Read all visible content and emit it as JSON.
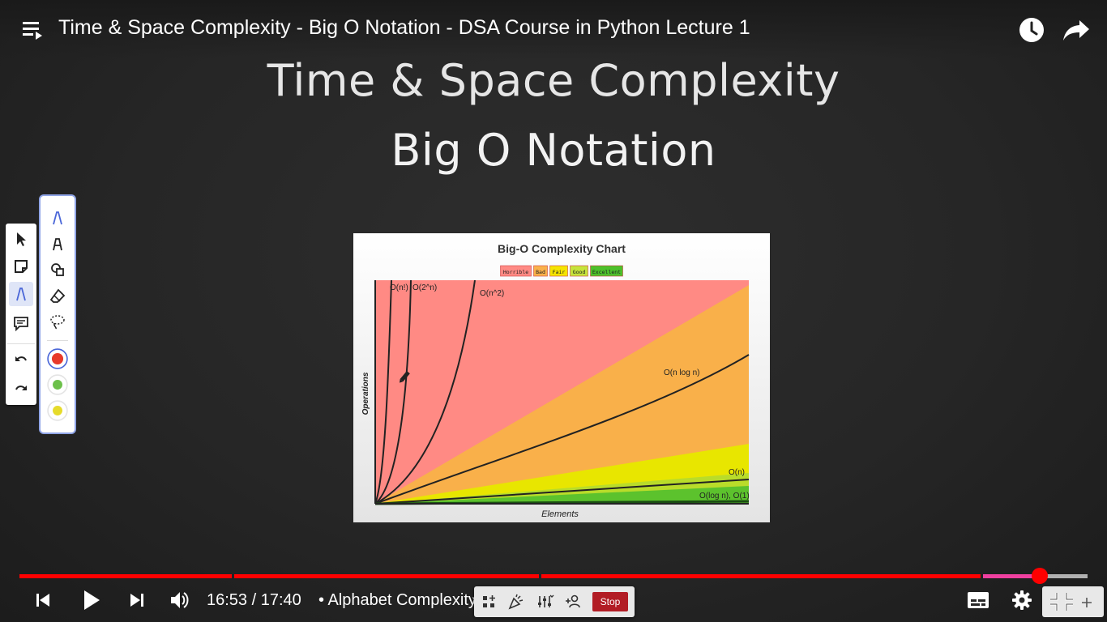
{
  "video": {
    "title": "Time & Space Complexity - Big O Notation - DSA Course in Python Lecture 1"
  },
  "slide": {
    "title": "Time & Space Complexity",
    "subtitle": "Big O Notation"
  },
  "chart_data": {
    "type": "line",
    "title": "Big-O Complexity Chart",
    "xlabel": "Elements",
    "ylabel": "Operations",
    "legend": [
      "Horrible",
      "Bad",
      "Fair",
      "Good",
      "Excellent"
    ],
    "legend_colors": [
      "#ff8a84",
      "#f9b04a",
      "#f5e400",
      "#c5e33b",
      "#4dc02a"
    ],
    "legend_position": "top-center",
    "curve_labels": [
      "O(n!)",
      "O(2^n)",
      "O(n^2)",
      "O(n log n)",
      "O(n)",
      "O(log n), O(1)"
    ],
    "grid": false
  },
  "player": {
    "current_time": "16:53",
    "duration": "17:40",
    "time_separator": " / ",
    "chapter_bullet": "•",
    "chapter": "Alphabet Complexity",
    "chapter_arrow": "›",
    "progress_played": 0.955,
    "stop_label": "Stop",
    "colors": {
      "played": "#ff0000",
      "buffered": "#b0b0b0"
    }
  },
  "annotation_tools": {
    "left": [
      "cursor-icon",
      "sticky-note-icon",
      "pen-icon",
      "comment-icon",
      "undo-icon",
      "redo-icon"
    ],
    "pen": [
      "pen-icon",
      "highlighter-icon",
      "shapes-icon",
      "eraser-icon",
      "lasso-icon"
    ],
    "colors": [
      "#e8392a",
      "#6cc04a",
      "#e6db2a"
    ]
  }
}
